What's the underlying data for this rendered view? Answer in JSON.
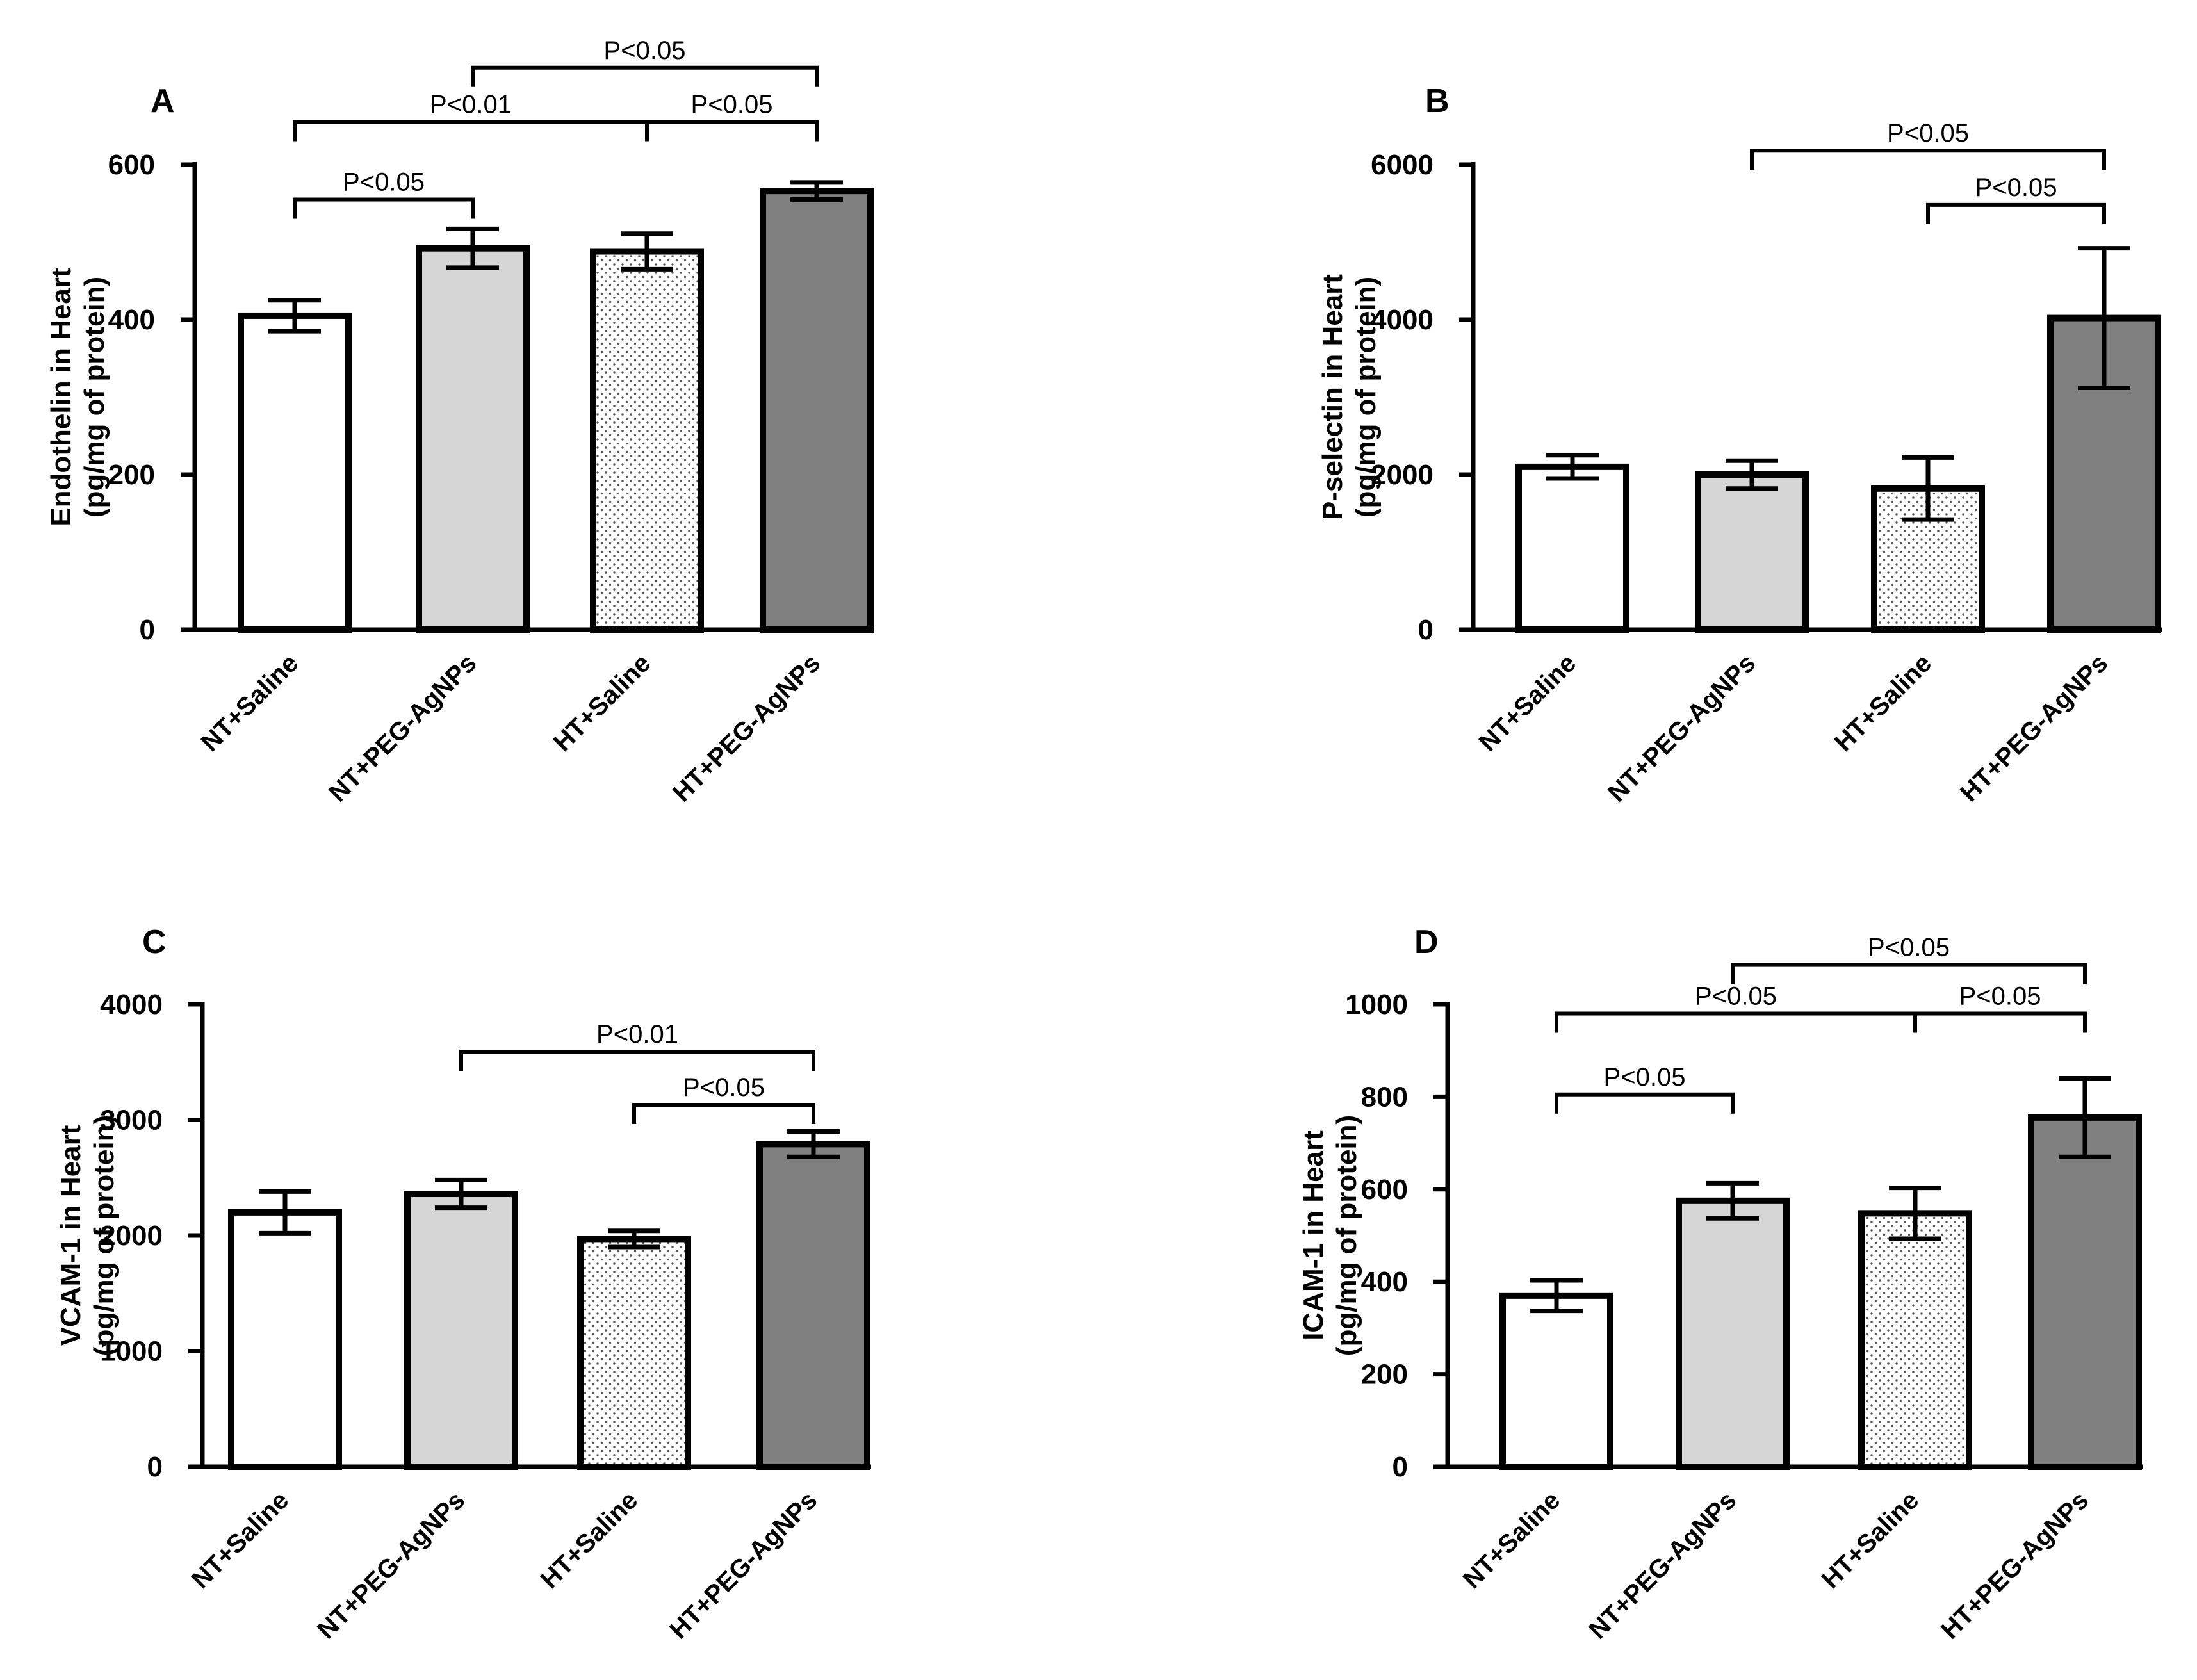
{
  "figure": {
    "panels": [
      "A",
      "B",
      "C",
      "D"
    ]
  },
  "chart_data": [
    {
      "panel": "A",
      "type": "bar",
      "categories": [
        "NT+Saline",
        "NT+PEG-AgNPs",
        "HT+Saline",
        "HT+PEG-AgNPs"
      ],
      "values": [
        405,
        492,
        488,
        566
      ],
      "errors": [
        20,
        25,
        23,
        11
      ],
      "fills": [
        "#ffffff",
        "#d6d6d6",
        "dotted",
        "#808080"
      ],
      "ylabel_line1": "Endothelin in Heart",
      "ylabel_line2": "(pg/mg of protein)",
      "ylim": [
        0,
        600
      ],
      "yticks": [
        0,
        200,
        400,
        600
      ],
      "ytick_labels": [
        "0",
        "200",
        "400",
        "600"
      ],
      "comparisons": [
        {
          "from": 0,
          "to": 1,
          "label": "P<0.05",
          "y": 555
        },
        {
          "from": 0,
          "to": 2,
          "label": "P<0.01",
          "y": 655
        },
        {
          "from": 2,
          "to": 3,
          "label": "P<0.05",
          "y": 655
        },
        {
          "from": 1,
          "to": 3,
          "label": "P<0.05",
          "y": 725
        }
      ]
    },
    {
      "panel": "B",
      "type": "bar",
      "categories": [
        "NT+Saline",
        "NT+PEG-AgNPs",
        "HT+Saline",
        "HT+PEG-AgNPs"
      ],
      "values": [
        2100,
        2000,
        1820,
        4020
      ],
      "errors": [
        150,
        180,
        400,
        900
      ],
      "fills": [
        "#ffffff",
        "#d6d6d6",
        "dotted",
        "#808080"
      ],
      "ylabel_line1": "P-selectin in Heart",
      "ylabel_line2": "(pg/mg of protein)",
      "ylim": [
        0,
        6000
      ],
      "yticks": [
        0,
        2000,
        4000,
        6000
      ],
      "ytick_labels": [
        "0",
        "2000",
        "4000",
        "6000"
      ],
      "comparisons": [
        {
          "from": 2,
          "to": 3,
          "label": "P<0.05",
          "y": 5480
        },
        {
          "from": 1,
          "to": 3,
          "label": "P<0.05",
          "y": 6180
        }
      ]
    },
    {
      "panel": "C",
      "type": "bar",
      "categories": [
        "NT+Saline",
        "NT+PEG-AgNPs",
        "HT+Saline",
        "HT+PEG-AgNPs"
      ],
      "values": [
        2200,
        2360,
        1970,
        2790
      ],
      "errors": [
        180,
        120,
        70,
        110
      ],
      "fills": [
        "#ffffff",
        "#d6d6d6",
        "dotted",
        "#808080"
      ],
      "ylabel_line1": "VCAM-1 in Heart",
      "ylabel_line2": "(pg/mg of protein)",
      "ylim": [
        0,
        4000
      ],
      "yticks": [
        0,
        1000,
        2000,
        3000,
        4000
      ],
      "ytick_labels": [
        "0",
        "1000",
        "2000",
        "3000",
        "4000"
      ],
      "comparisons": [
        {
          "from": 2,
          "to": 3,
          "label": "P<0.05",
          "y": 3130
        },
        {
          "from": 1,
          "to": 3,
          "label": "P<0.01",
          "y": 3590
        }
      ]
    },
    {
      "panel": "D",
      "type": "bar",
      "categories": [
        "NT+Saline",
        "NT+PEG-AgNPs",
        "HT+Saline",
        "HT+PEG-AgNPs"
      ],
      "values": [
        370,
        575,
        548,
        755
      ],
      "errors": [
        33,
        38,
        55,
        85
      ],
      "fills": [
        "#ffffff",
        "#d6d6d6",
        "dotted",
        "#808080"
      ],
      "ylabel_line1": "ICAM-1 in Heart",
      "ylabel_line2": "(pg/mg of protein)",
      "ylim": [
        0,
        1000
      ],
      "yticks": [
        0,
        200,
        400,
        600,
        800,
        1000
      ],
      "ytick_labels": [
        "0",
        "200",
        "400",
        "600",
        "800",
        "1000"
      ],
      "comparisons": [
        {
          "from": 0,
          "to": 1,
          "label": "P<0.05",
          "y": 805
        },
        {
          "from": 0,
          "to": 2,
          "label": "P<0.05",
          "y": 980
        },
        {
          "from": 2,
          "to": 3,
          "label": "P<0.05",
          "y": 980
        },
        {
          "from": 1,
          "to": 3,
          "label": "P<0.05",
          "y": 1085
        }
      ]
    }
  ]
}
